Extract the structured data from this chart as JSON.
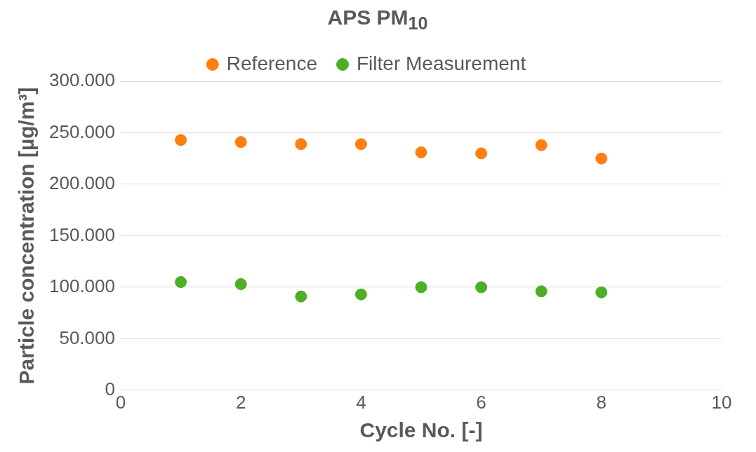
{
  "chart_data": {
    "type": "scatter",
    "title": "APS PM$_{10}$",
    "xlabel": "Cycle No. [-]",
    "ylabel": "Particle concentration [µg/m³]",
    "x": [
      1,
      2,
      3,
      4,
      5,
      6,
      7,
      8
    ],
    "series": [
      {
        "name": "Reference",
        "color": "#ff7f0e",
        "values": [
          243000,
          241000,
          239000,
          239000,
          231000,
          230000,
          238000,
          225000
        ]
      },
      {
        "name": "Filter Measurement",
        "color": "#4caf26",
        "values": [
          105000,
          103000,
          91000,
          93000,
          100000,
          100000,
          96000,
          95000
        ]
      }
    ],
    "xlim": [
      0,
      10
    ],
    "xticks": [
      0,
      2,
      4,
      6,
      8,
      10
    ],
    "ylim": [
      0,
      300000
    ],
    "yticks": [
      {
        "value": 0,
        "label": "0"
      },
      {
        "value": 50000,
        "label": "50.000"
      },
      {
        "value": 100000,
        "label": "100.000"
      },
      {
        "value": 150000,
        "label": "150.000"
      },
      {
        "value": 200000,
        "label": "200.000"
      },
      {
        "value": 250000,
        "label": "250.000"
      },
      {
        "value": 300000,
        "label": "300.000"
      }
    ],
    "grid": "y",
    "legend": "top",
    "marker": "circle"
  }
}
